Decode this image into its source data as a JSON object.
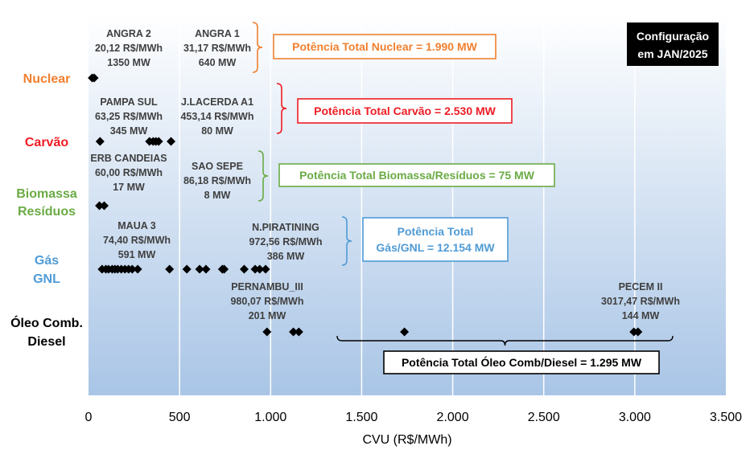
{
  "chart_data": {
    "type": "scatter",
    "title": "",
    "xlabel": "CVU (R$/MWh)",
    "ylabel": "",
    "xlim": [
      0,
      3500
    ],
    "xticks": [
      "0",
      "500",
      "1.000",
      "1.500",
      "2.000",
      "2.500",
      "3.000",
      "3.500"
    ],
    "grid": "vertical",
    "config_label": [
      "Configuração",
      "em JAN/2025"
    ],
    "categories": [
      {
        "key": "nuclear",
        "label": [
          "Nuclear"
        ],
        "color": "#f08030"
      },
      {
        "key": "carvao",
        "label": [
          "Carvão"
        ],
        "color": "#ee1c24"
      },
      {
        "key": "biomassa",
        "label": [
          "Biomassa",
          "Resíduos"
        ],
        "color": "#6aab45"
      },
      {
        "key": "gas",
        "label": [
          "Gás",
          "GNL"
        ],
        "color": "#4f9bd6"
      },
      {
        "key": "oleo",
        "label": [
          "Óleo Comb.",
          "Diesel"
        ],
        "color": "#000000"
      }
    ],
    "series": [
      {
        "category": "nuclear",
        "x": [
          20.12,
          31.17
        ]
      },
      {
        "category": "carvao",
        "x": [
          63.25,
          335,
          355,
          370,
          385,
          453.14
        ]
      },
      {
        "category": "biomassa",
        "x": [
          60.0,
          86.18
        ]
      },
      {
        "category": "gas",
        "x": [
          74.4,
          95,
          110,
          130,
          145,
          160,
          180,
          200,
          220,
          240,
          270,
          445,
          540,
          610,
          645,
          735,
          745,
          855,
          915,
          940,
          972.56
        ]
      },
      {
        "category": "oleo",
        "x": [
          980.07,
          1125,
          1155,
          1735,
          2995,
          3017.47
        ]
      }
    ],
    "annotations": [
      {
        "category": "nuclear",
        "lines": [
          "ANGRA 2",
          "20,12 R$/MWh",
          "1350 MW"
        ]
      },
      {
        "category": "nuclear",
        "lines": [
          "ANGRA 1",
          "31,17 R$/MWh",
          "640 MW"
        ]
      },
      {
        "category": "carvao",
        "lines": [
          "PAMPA SUL",
          "63,25 R$/MWh",
          "345 MW"
        ]
      },
      {
        "category": "carvao",
        "lines": [
          "J.LACERDA A1",
          "453,14 R$/MWh",
          "80 MW"
        ]
      },
      {
        "category": "biomassa",
        "lines": [
          "ERB CANDEIAS",
          "60,00 R$/MWh",
          "17 MW"
        ]
      },
      {
        "category": "biomassa",
        "lines": [
          "SAO SEPE",
          "86,18 R$/MWh",
          "8 MW"
        ]
      },
      {
        "category": "gas",
        "lines": [
          "MAUA 3",
          "74,40 R$/MWh",
          "591 MW"
        ]
      },
      {
        "category": "gas",
        "lines": [
          "N.PIRATINING",
          "972,56 R$/MWh",
          "386 MW"
        ]
      },
      {
        "category": "oleo",
        "lines": [
          "PERNAMBU_III",
          "980,07 R$/MWh",
          "201 MW"
        ]
      },
      {
        "category": "oleo",
        "lines": [
          "PECEM II",
          "3017,47 R$/MWh",
          "144 MW"
        ]
      }
    ],
    "totals": [
      {
        "category": "nuclear",
        "lines": [
          "Potência Total Nuclear = 1.990 MW"
        ],
        "color": "#f08030"
      },
      {
        "category": "carvao",
        "lines": [
          "Potência Total Carvão = 2.530 MW"
        ],
        "color": "#ee1c24"
      },
      {
        "category": "biomassa",
        "lines": [
          "Potência Total Biomassa/Resíduos = 75 MW"
        ],
        "color": "#6aab45"
      },
      {
        "category": "gas",
        "lines": [
          "Potência Total",
          "Gás/GNL = 12.154 MW"
        ],
        "color": "#4f9bd6"
      },
      {
        "category": "oleo",
        "lines": [
          "Potência Total Óleo Comb/Diesel = 1.295 MW"
        ],
        "color": "#000000"
      }
    ]
  }
}
